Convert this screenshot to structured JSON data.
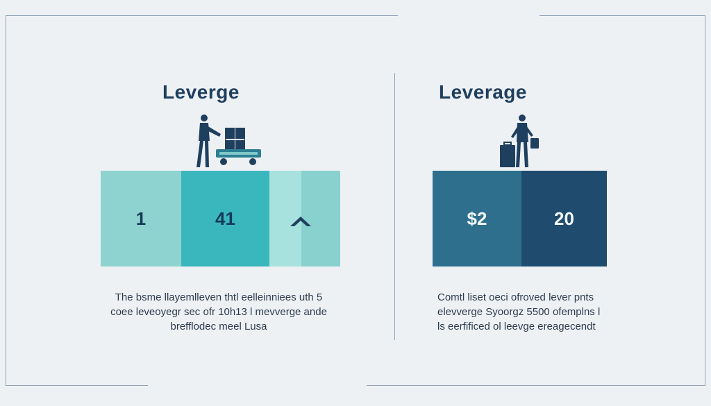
{
  "left": {
    "title": "Leverge",
    "blocks": [
      {
        "label": "1",
        "color": "#8fd3d0"
      },
      {
        "label": "41",
        "color": "#3ab7bd"
      },
      {
        "label": "",
        "color": "#a8e2df"
      },
      {
        "label": "",
        "color": "#89d1cf"
      }
    ],
    "caption": [
      "The bsme llayemlleven thtl eelleinniees uth 5",
      "coee leveoyegr sec ofr 10h13 l mevverge ande",
      "brefflodec meel Lusa"
    ]
  },
  "right": {
    "title": "Leverage",
    "blocks": [
      {
        "label": "$2",
        "color": "#2d6f8d"
      },
      {
        "label": "20",
        "color": "#1e4b6e"
      }
    ],
    "caption": [
      "Comtl liset oeci ofroved lever pnts",
      "elevverge Syoorgz 5500 ofemplns l",
      "ls eerfificed ol leevge ereagecendt"
    ]
  },
  "colors": {
    "background": "#eef1f4",
    "frame": "#8fa2b6",
    "title": "#1f3f5e",
    "figure": "#1f3f5e",
    "cart": "#2c7f92"
  }
}
